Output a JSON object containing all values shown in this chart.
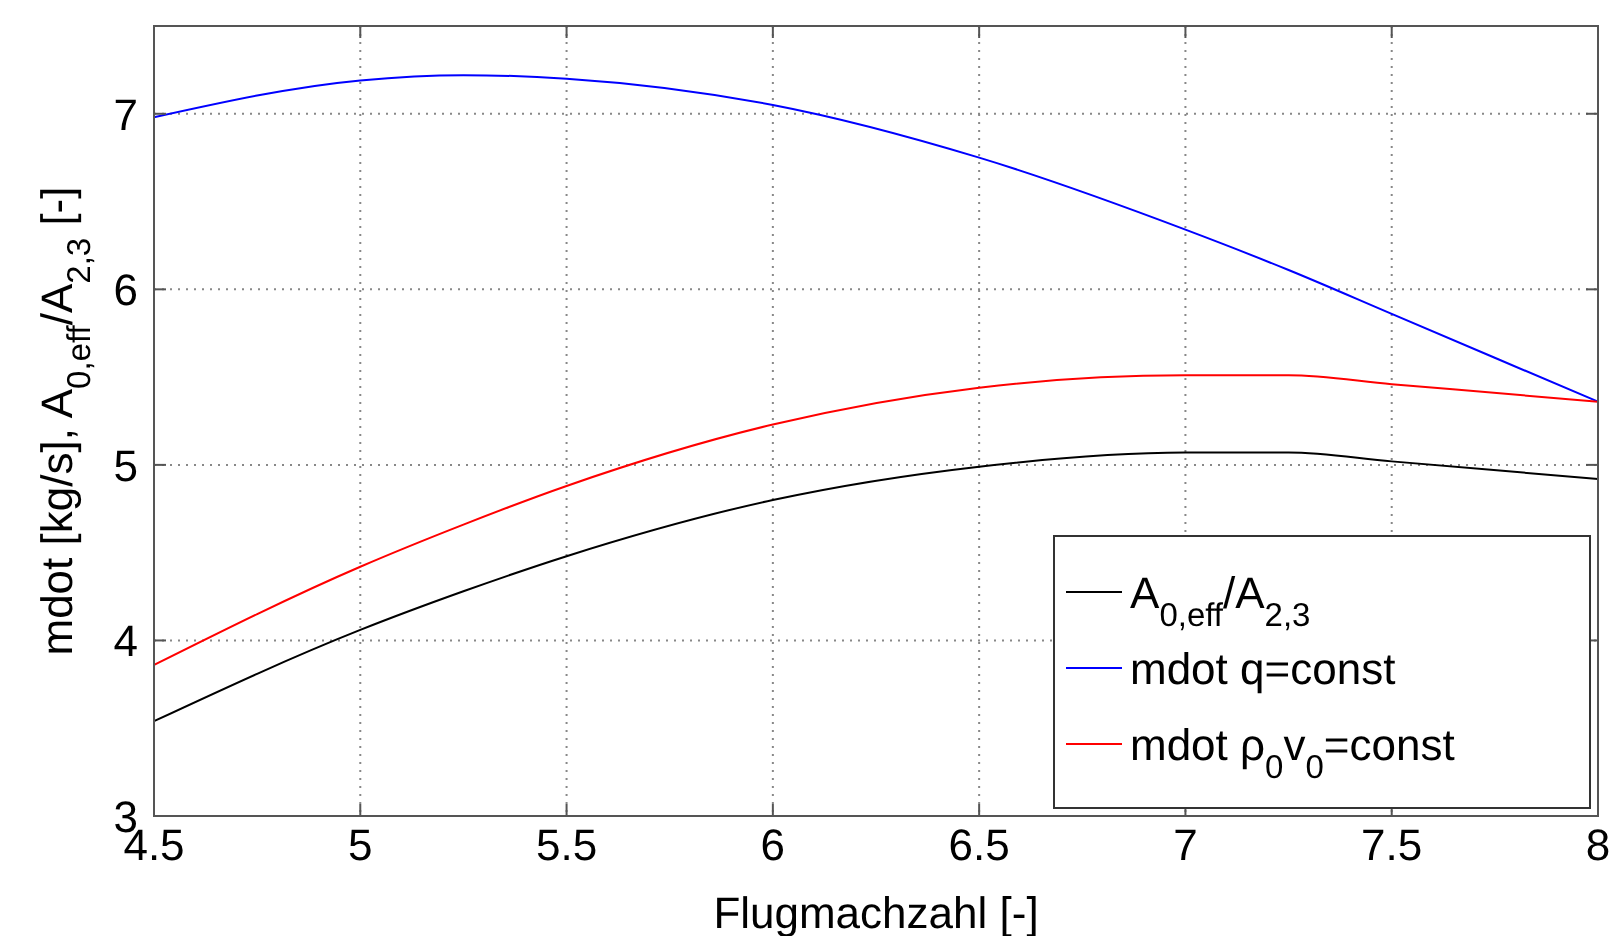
{
  "chart_data": {
    "type": "line",
    "xlabel": "Flugmachzahl [-]",
    "ylabel": "mdot [kg/s], A$_{0,eff}$/A$_{2,3}$ [-]",
    "x": [
      4.5,
      5,
      5.25,
      5.5,
      6,
      6.5,
      7,
      7.25,
      7.5,
      8
    ],
    "series": [
      {
        "name": "A$_{0,eff}$/A$_{2,3}$",
        "color": "#000000",
        "values": [
          3.54,
          4.06,
          4.28,
          4.48,
          4.8,
          4.99,
          5.07,
          5.07,
          5.02,
          4.92
        ]
      },
      {
        "name": "mdot q=const",
        "color": "#0000ff",
        "values": [
          6.98,
          7.19,
          7.22,
          7.2,
          7.05,
          6.75,
          6.34,
          6.11,
          5.86,
          5.36
        ]
      },
      {
        "name": "mdot ρ$_{0}$v$_{0}$=const",
        "color": "#ff0000",
        "values": [
          3.86,
          4.42,
          4.66,
          4.88,
          5.23,
          5.44,
          5.51,
          5.51,
          5.46,
          5.36
        ]
      }
    ],
    "xlim": [
      4.5,
      8
    ],
    "xticks": [
      4.5,
      5,
      5.5,
      6,
      6.5,
      7,
      7.5,
      8
    ],
    "ylim": [
      3,
      7.5
    ],
    "yticks": [
      3,
      4,
      5,
      6,
      7
    ],
    "grid": true,
    "legend": "bottom right",
    "line_style": "solid",
    "marker": "none"
  }
}
